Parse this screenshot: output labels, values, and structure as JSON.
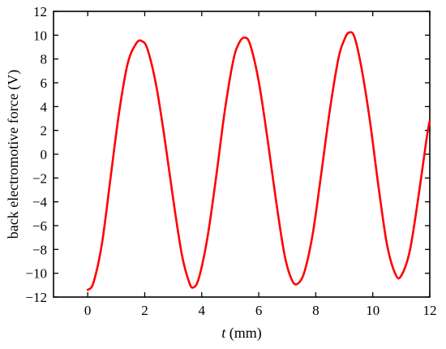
{
  "chart_data": {
    "type": "line",
    "title": "",
    "xlabel_italic": "t",
    "xlabel_rest": " (mm)",
    "ylabel": "back electromotive force (V)",
    "xlim": [
      -1.2,
      12
    ],
    "ylim": [
      -12,
      12
    ],
    "x_ticks": [
      0,
      2,
      4,
      6,
      8,
      10,
      12
    ],
    "y_ticks": [
      -12,
      -10,
      -8,
      -6,
      -4,
      -2,
      0,
      2,
      4,
      6,
      8,
      10,
      12
    ],
    "x_tick_labels": [
      "0",
      "2",
      "4",
      "6",
      "8",
      "10",
      "12"
    ],
    "y_tick_labels": [
      "−12",
      "−10",
      "−8",
      "−6",
      "−4",
      "−2",
      "0",
      "2",
      "4",
      "6",
      "8",
      "10",
      "12"
    ],
    "grid": false,
    "series": [
      {
        "color": "#ff0000",
        "x": [
          0.0,
          0.2,
          0.5,
          0.8,
          1.1,
          1.4,
          1.7,
          1.9,
          2.1,
          2.4,
          2.7,
          3.0,
          3.3,
          3.55,
          3.7,
          3.9,
          4.2,
          4.5,
          4.8,
          5.1,
          5.3,
          5.5,
          5.7,
          6.0,
          6.3,
          6.6,
          6.9,
          7.15,
          7.35,
          7.6,
          7.9,
          8.2,
          8.5,
          8.8,
          9.0,
          9.15,
          9.35,
          9.6,
          9.9,
          10.2,
          10.5,
          10.8,
          11.0,
          11.3,
          11.6,
          11.9,
          12.0
        ],
        "y": [
          -11.4,
          -10.8,
          -7.5,
          -2.0,
          3.5,
          7.6,
          9.3,
          9.5,
          8.8,
          5.8,
          1.3,
          -3.8,
          -8.4,
          -10.7,
          -11.2,
          -10.4,
          -7.0,
          -2.0,
          3.5,
          7.8,
          9.3,
          9.8,
          9.2,
          6.1,
          1.4,
          -3.8,
          -8.4,
          -10.5,
          -10.9,
          -9.9,
          -6.6,
          -1.5,
          3.8,
          8.1,
          9.6,
          10.2,
          9.9,
          7.3,
          2.8,
          -2.7,
          -7.6,
          -10.1,
          -10.2,
          -8.1,
          -3.6,
          1.5,
          2.8
        ]
      }
    ]
  }
}
